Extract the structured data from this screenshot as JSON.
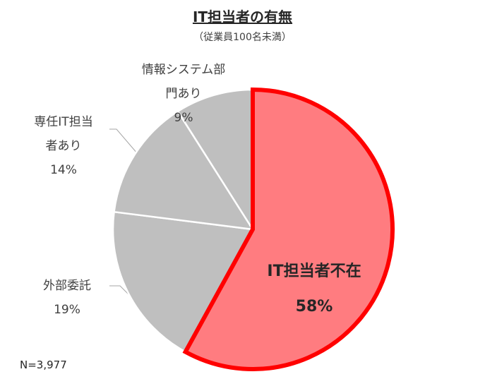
{
  "chart_data": {
    "type": "pie",
    "title": "IT担当者の有無",
    "subtitle": "（従業員100名未満）",
    "categories": [
      "IT担当者不在",
      "外部委託",
      "専任IT担当者あり",
      "情報システム部門あり"
    ],
    "values": [
      58,
      19,
      14,
      9
    ],
    "value_labels": [
      "58%",
      "19%",
      "14%",
      "9%"
    ],
    "colors": [
      "#ff7c80",
      "#bfbfbf",
      "#bfbfbf",
      "#bfbfbf"
    ],
    "edge_colors": [
      "#ff0000",
      "#ffffff",
      "#ffffff",
      "#ffffff"
    ],
    "note": "N=3,977"
  }
}
